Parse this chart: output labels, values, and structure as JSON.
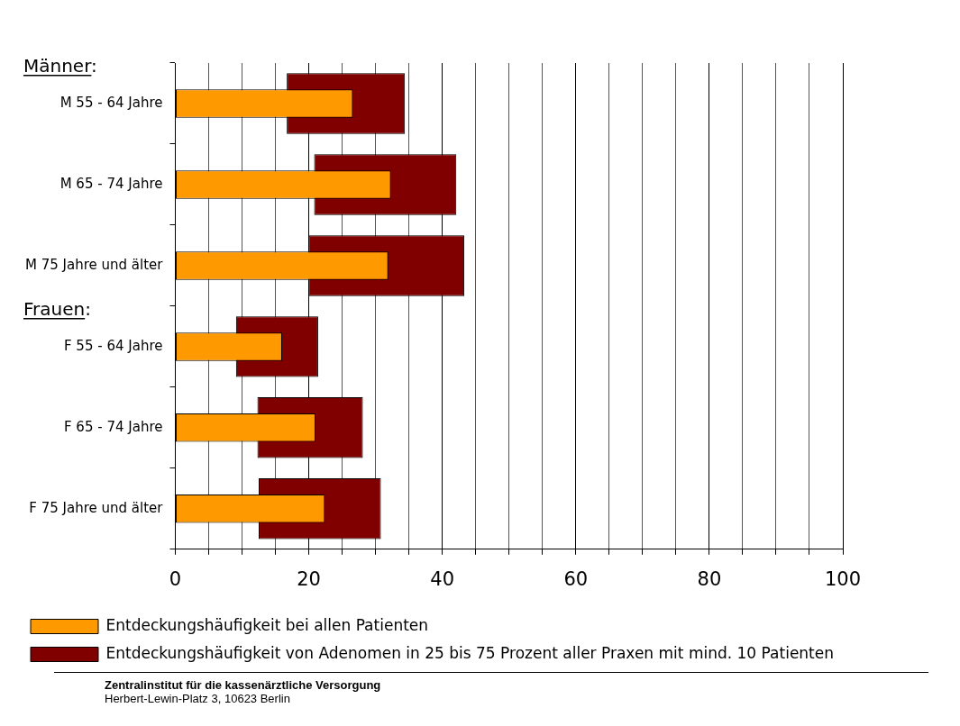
{
  "chart_data": {
    "type": "bar",
    "orientation": "horizontal",
    "categories": [
      "M 55 - 64 Jahre",
      "M 65 - 74 Jahre",
      "M 75 Jahre und älter",
      "F 55 - 64 Jahre",
      "F 65 - 74 Jahre",
      "F 75 Jahre und älter"
    ],
    "series": [
      {
        "name": "Entdeckungshäufigkeit von Adenomen in 25 bis 75 Prozent aller Praxen mit mind. 10 Patienten",
        "color": "#800000",
        "base": [
          16.7,
          20.8,
          20.0,
          9.1,
          12.3,
          12.5
        ],
        "values": [
          17.7,
          21.3,
          23.3,
          12.3,
          15.8,
          18.3
        ]
      },
      {
        "name": "Entdeckungshäufigkeit bei allen Patienten",
        "color": "#ff9900",
        "values": [
          26.6,
          32.3,
          31.9,
          16.0,
          21.0,
          22.4
        ]
      }
    ],
    "xlim": [
      0,
      100
    ],
    "xticks": [
      0,
      {
        "value": 5,
        "label": null
      },
      {
        "value": 10,
        "label": null
      },
      {
        "value": 15,
        "label": null
      },
      20,
      {
        "value": 25,
        "label": null
      },
      {
        "value": 30,
        "label": null
      },
      {
        "value": 35,
        "label": null
      },
      40,
      {
        "value": 45,
        "label": null
      },
      {
        "value": 50,
        "label": null
      },
      {
        "value": 55,
        "label": null
      },
      60,
      {
        "value": 65,
        "label": null
      },
      {
        "value": 70,
        "label": null
      },
      {
        "value": 75,
        "label": null
      },
      80,
      {
        "value": 85,
        "label": null
      },
      {
        "value": 90,
        "label": null
      },
      {
        "value": 95,
        "label": null
      },
      100
    ],
    "grid": "x",
    "legend": "bottom",
    "annotations": [
      "Männer:",
      "Frauen:",
      "Zentralinstitut für die kassenärztliche Versorgung",
      "Herbert-Lewin-Platz 3, 10623 Berlin"
    ]
  }
}
